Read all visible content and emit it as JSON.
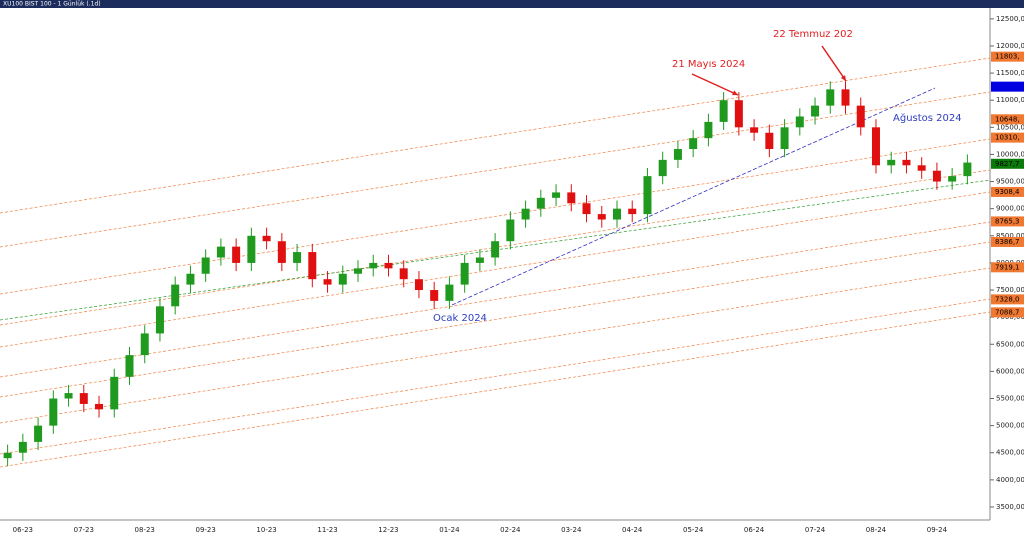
{
  "chart_data": {
    "type": "candlestick",
    "title": "XU100 BIST 100 - 1 Günlük (.1d)",
    "categories": [
      null,
      "06-23",
      null,
      null,
      null,
      "07-23",
      null,
      null,
      null,
      "08-23",
      null,
      null,
      null,
      "09-23",
      null,
      null,
      null,
      "10-23",
      null,
      null,
      null,
      "11-23",
      null,
      null,
      null,
      "12-23",
      null,
      null,
      null,
      "01-24",
      null,
      null,
      null,
      "02-24",
      null,
      null,
      null,
      "03-24",
      null,
      null,
      null,
      "04-24",
      null,
      null,
      null,
      "05-24",
      null,
      null,
      null,
      "06-24",
      null,
      null,
      null,
      "07-24",
      null,
      null,
      null,
      "08-24",
      null,
      null,
      null,
      "09-24",
      null,
      null
    ],
    "open": [
      4400,
      4500,
      4700,
      5000,
      5500,
      5600,
      5400,
      5300,
      5900,
      6300,
      6700,
      7200,
      7600,
      7800,
      8100,
      8300,
      8000,
      8500,
      8400,
      8000,
      8200,
      7700,
      7600,
      7800,
      7900,
      8000,
      7900,
      7700,
      7500,
      7300,
      7600,
      8000,
      8100,
      8400,
      8800,
      9000,
      9200,
      9300,
      9100,
      8900,
      8800,
      9000,
      8900,
      9600,
      9900,
      10100,
      10300,
      10600,
      11000,
      10500,
      10400,
      10100,
      10500,
      10700,
      10900,
      11200,
      10900,
      10500,
      9800,
      9900,
      9800,
      9700,
      9500,
      9600
    ],
    "high": [
      4650,
      4850,
      5150,
      5650,
      5750,
      5750,
      5550,
      6050,
      6450,
      6850,
      7350,
      7750,
      7950,
      8250,
      8450,
      8450,
      8650,
      8650,
      8550,
      8350,
      8350,
      7850,
      7950,
      8050,
      8150,
      8150,
      8050,
      7850,
      7650,
      7750,
      8150,
      8250,
      8550,
      8950,
      9150,
      9350,
      9450,
      9450,
      9250,
      9050,
      9150,
      9150,
      9750,
      10050,
      10250,
      10450,
      10750,
      11150,
      11150,
      10650,
      10550,
      10650,
      10850,
      11050,
      11350,
      11350,
      11050,
      10650,
      10050,
      10050,
      9950,
      9850,
      9750,
      10000
    ],
    "low": [
      4250,
      4350,
      4550,
      4850,
      5350,
      5250,
      5150,
      5150,
      5750,
      6150,
      6550,
      7050,
      7450,
      7650,
      7950,
      7850,
      7850,
      8250,
      7850,
      7850,
      7550,
      7450,
      7450,
      7650,
      7750,
      7750,
      7550,
      7350,
      7150,
      7150,
      7450,
      7850,
      7950,
      8250,
      8650,
      8850,
      9050,
      8950,
      8750,
      8650,
      8650,
      8750,
      8750,
      9450,
      9750,
      9950,
      10150,
      10450,
      10350,
      10250,
      9950,
      9950,
      10350,
      10550,
      10750,
      10750,
      10350,
      9650,
      9650,
      9650,
      9550,
      9350,
      9350,
      9450
    ],
    "close": [
      4500,
      4700,
      5000,
      5500,
      5600,
      5400,
      5300,
      5900,
      6300,
      6700,
      7200,
      7600,
      7800,
      8100,
      8300,
      8000,
      8500,
      8400,
      8000,
      8200,
      7700,
      7600,
      7800,
      7900,
      8000,
      7900,
      7700,
      7500,
      7300,
      7600,
      8000,
      8100,
      8400,
      8800,
      9000,
      9200,
      9300,
      9100,
      8900,
      8800,
      9000,
      8900,
      9600,
      9900,
      10100,
      10300,
      10600,
      11000,
      10500,
      10400,
      10100,
      10500,
      10700,
      10900,
      11200,
      10900,
      10500,
      9800,
      9900,
      9800,
      9700,
      9500,
      9600,
      9850
    ],
    "up_color": "#1f9a1f",
    "down_color": "#e01010",
    "ylim": [
      3260,
      12700
    ],
    "yticks": [
      {
        "value": 3500,
        "label": "3500,00"
      },
      {
        "value": 4000,
        "label": "4000,00"
      },
      {
        "value": 4500,
        "label": "4500,00"
      },
      {
        "value": 5000,
        "label": "5000,00"
      },
      {
        "value": 5500,
        "label": "5500,00"
      },
      {
        "value": 6000,
        "label": "6000,00"
      },
      {
        "value": 6500,
        "label": "6500,00"
      },
      {
        "value": 7000,
        "label": "7000,00"
      },
      {
        "value": 7500,
        "label": "7500,00"
      },
      {
        "value": 8000,
        "label": "8000,00"
      },
      {
        "value": 8500,
        "label": "8500,00"
      },
      {
        "value": 9000,
        "label": "9000,00"
      },
      {
        "value": 9500,
        "label": "9500,00"
      },
      {
        "value": 10000,
        "label": "10000,00"
      },
      {
        "value": 10500,
        "label": "10500,00"
      },
      {
        "value": 11000,
        "label": "11000,00"
      },
      {
        "value": 11500,
        "label": "11500,00"
      },
      {
        "value": 12000,
        "label": "12000,00"
      },
      {
        "value": 12500,
        "label": "12500,00"
      }
    ],
    "levels": [
      {
        "value": 11803,
        "label": "11803,",
        "color": "#f07830"
      },
      {
        "value": 11250,
        "color": "#0000e0"
      },
      {
        "value": 10648,
        "label": "10648,",
        "color": "#f07830"
      },
      {
        "value": 10310,
        "label": "10310,",
        "color": "#f07830"
      },
      {
        "value": 9827.7,
        "label": "9827,7",
        "color": "#0a7a0a"
      },
      {
        "value": 9308.4,
        "label": "9308,4",
        "color": "#f07830"
      },
      {
        "value": 8765.3,
        "label": "8765,3",
        "color": "#f07830"
      },
      {
        "value": 8386.7,
        "label": "8386,7",
        "color": "#f07830"
      },
      {
        "value": 7919.1,
        "label": "7919,1",
        "color": "#f07830"
      },
      {
        "value": 7328.0,
        "label": "7328,0",
        "color": "#f07830"
      },
      {
        "value": 7088.7,
        "label": "7088,7",
        "color": "#f07830"
      }
    ],
    "annotations": [
      "21 Mayıs 2024",
      "22 Temmuz 202",
      "Ağustos 2024",
      "Ocak 2024"
    ]
  }
}
